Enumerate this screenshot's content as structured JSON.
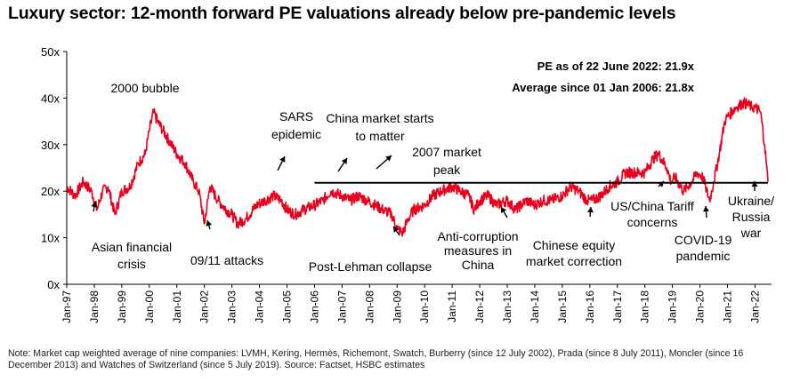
{
  "chart_data": {
    "type": "line",
    "title": "Luxury sector: 12-month forward PE valuations already below pre-pandemic levels",
    "ylim": [
      0,
      50
    ],
    "y_ticks": [
      "0x",
      "10x",
      "20x",
      "30x",
      "40x",
      "50x"
    ],
    "x_ticks": [
      "Jan-97",
      "Jan-98",
      "Jan-99",
      "Jan-00",
      "Jan-01",
      "Jan-02",
      "Jan-03",
      "Jan-04",
      "Jan-05",
      "Jan-06",
      "Jan-07",
      "Jan-08",
      "Jan-09",
      "Jan-10",
      "Jan-11",
      "Jan-12",
      "Jan-13",
      "Jan-14",
      "Jan-15",
      "Jan-16",
      "Jan-17",
      "Jan-18",
      "Jan-19",
      "Jan-20",
      "Jan-21",
      "Jan-22"
    ],
    "series": [
      {
        "name": "12-month forward PE",
        "color": "#e8001c",
        "x": [
          1997.0,
          1997.3,
          1997.6,
          1997.9,
          1998.1,
          1998.3,
          1998.5,
          1998.75,
          1999.0,
          1999.3,
          1999.6,
          1999.85,
          2000.0,
          2000.15,
          2000.3,
          2000.5,
          2000.8,
          2001.0,
          2001.3,
          2001.6,
          2001.8,
          2002.0,
          2002.2,
          2002.5,
          2002.8,
          2003.0,
          2003.2,
          2003.5,
          2003.9,
          2004.2,
          2004.5,
          2004.8,
          2005.0,
          2005.3,
          2005.6,
          2006.0,
          2006.3,
          2006.6,
          2007.0,
          2007.3,
          2007.6,
          2007.9,
          2008.2,
          2008.5,
          2008.8,
          2009.0,
          2009.2,
          2009.4,
          2009.6,
          2010.0,
          2010.3,
          2010.6,
          2011.0,
          2011.3,
          2011.6,
          2011.8,
          2012.0,
          2012.3,
          2012.6,
          2013.0,
          2013.3,
          2013.7,
          2014.0,
          2014.3,
          2014.6,
          2015.0,
          2015.3,
          2015.6,
          2015.9,
          2016.1,
          2016.4,
          2016.7,
          2017.0,
          2017.3,
          2017.6,
          2018.0,
          2018.3,
          2018.5,
          2018.8,
          2018.95,
          2019.1,
          2019.4,
          2019.7,
          2019.9,
          2020.1,
          2020.2,
          2020.35,
          2020.5,
          2020.7,
          2020.9,
          2021.0,
          2021.3,
          2021.6,
          2021.9,
          2022.0,
          2022.2,
          2022.35,
          2022.47
        ],
        "values": [
          21,
          19,
          22,
          20,
          16,
          20,
          21,
          15,
          20,
          21,
          26,
          28,
          33,
          37,
          35,
          33,
          30,
          28,
          26,
          22,
          20,
          13,
          21,
          18,
          16,
          15,
          13,
          14,
          17,
          18,
          19,
          18,
          16,
          15,
          16,
          17,
          18,
          20,
          19,
          18,
          19,
          18,
          17,
          16,
          15,
          12,
          11,
          14,
          16,
          17,
          19,
          20,
          21,
          20,
          19,
          16,
          18,
          19,
          17,
          18,
          16,
          18,
          17,
          18,
          18,
          19,
          21,
          20,
          18,
          18,
          19,
          21,
          22,
          24,
          24,
          24,
          27,
          28,
          25,
          22,
          23,
          20,
          22,
          24,
          23,
          21,
          18,
          22,
          28,
          35,
          36,
          38,
          39,
          38,
          38,
          37,
          30,
          22
        ],
        "label_color": "#000000"
      }
    ],
    "reference_line": {
      "label": "Average since 01 Jan 2006: 21.8x",
      "value": 21.8,
      "from": 2006.0,
      "to": 2022.47,
      "color": "#000000"
    },
    "pe_text": [
      "PE as of 22 June 2022: 21.9x",
      "Average since 01 Jan 2006: 21.8x"
    ],
    "annotations": [
      {
        "id": "bubble",
        "lines": [
          "2000 bubble"
        ]
      },
      {
        "id": "asian",
        "lines": [
          "Asian financial",
          "crisis"
        ]
      },
      {
        "id": "sept11",
        "lines": [
          "09/11 attacks"
        ]
      },
      {
        "id": "sars",
        "lines": [
          "SARS",
          "epidemic"
        ]
      },
      {
        "id": "china",
        "lines": [
          "China market starts",
          "to matter"
        ]
      },
      {
        "id": "peak2007",
        "lines": [
          "2007 market",
          "peak"
        ]
      },
      {
        "id": "lehman",
        "lines": [
          "Post-Lehman collapse"
        ]
      },
      {
        "id": "anticorruption",
        "lines": [
          "Anti-corruption",
          "measures in",
          "China"
        ]
      },
      {
        "id": "chinaequity",
        "lines": [
          "Chinese equity",
          "market correction"
        ]
      },
      {
        "id": "tariff",
        "lines": [
          "US/China Tariff",
          "concerns"
        ]
      },
      {
        "id": "covid",
        "lines": [
          "COVID-19",
          "pandemic"
        ]
      },
      {
        "id": "ukraine",
        "lines": [
          "Ukraine/",
          "Russia",
          "war"
        ]
      }
    ]
  },
  "note": "Note: Market cap weighted average of nine companies: LVMH, Kering, Hermès, Richemont, Swatch, Burberry (since 12 July 2002), Prada (since 8 July 2011), Moncler (since 16 December 2013) and Watches of Switzerland (since 5 July 2019). Source: Factset, HSBC estimates"
}
